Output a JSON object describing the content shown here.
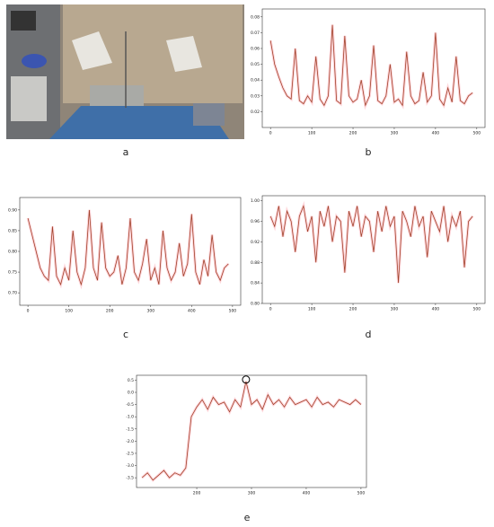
{
  "photo_label": "a",
  "chart_data": [
    {
      "type": "line",
      "label": "b",
      "color": "#a0422a",
      "x": [
        0,
        10,
        20,
        30,
        40,
        50,
        60,
        70,
        80,
        90,
        100,
        110,
        120,
        130,
        140,
        150,
        160,
        170,
        180,
        190,
        200,
        210,
        220,
        230,
        240,
        250,
        260,
        270,
        280,
        290,
        300,
        310,
        320,
        330,
        340,
        350,
        360,
        370,
        380,
        390,
        400,
        410,
        420,
        430,
        440,
        450,
        460,
        470,
        480,
        490
      ],
      "values": [
        0.065,
        0.05,
        0.042,
        0.035,
        0.03,
        0.028,
        0.06,
        0.027,
        0.025,
        0.03,
        0.026,
        0.055,
        0.028,
        0.024,
        0.03,
        0.075,
        0.027,
        0.025,
        0.068,
        0.03,
        0.026,
        0.028,
        0.04,
        0.024,
        0.03,
        0.062,
        0.027,
        0.025,
        0.03,
        0.05,
        0.026,
        0.028,
        0.024,
        0.058,
        0.03,
        0.025,
        0.027,
        0.045,
        0.026,
        0.03,
        0.07,
        0.028,
        0.024,
        0.035,
        0.026,
        0.055,
        0.027,
        0.025,
        0.03,
        0.032
      ],
      "xlim": [
        -20,
        520
      ],
      "xticks": [
        0,
        100,
        200,
        300,
        400,
        500
      ],
      "ylim": [
        0.01,
        0.085
      ],
      "yticks": [
        0.02,
        0.03,
        0.04,
        0.05,
        0.06,
        0.07,
        0.08
      ]
    },
    {
      "type": "line",
      "label": "c",
      "color": "#a0422a",
      "x": [
        0,
        10,
        20,
        30,
        40,
        50,
        60,
        70,
        80,
        90,
        100,
        110,
        120,
        130,
        140,
        150,
        160,
        170,
        180,
        190,
        200,
        210,
        220,
        230,
        240,
        250,
        260,
        270,
        280,
        290,
        300,
        310,
        320,
        330,
        340,
        350,
        360,
        370,
        380,
        390,
        400,
        410,
        420,
        430,
        440,
        450,
        460,
        470,
        480,
        490
      ],
      "values": [
        0.88,
        0.84,
        0.8,
        0.76,
        0.74,
        0.73,
        0.86,
        0.74,
        0.72,
        0.76,
        0.73,
        0.85,
        0.75,
        0.72,
        0.76,
        0.9,
        0.76,
        0.73,
        0.87,
        0.76,
        0.74,
        0.75,
        0.79,
        0.72,
        0.76,
        0.88,
        0.75,
        0.73,
        0.77,
        0.83,
        0.73,
        0.76,
        0.72,
        0.85,
        0.76,
        0.73,
        0.75,
        0.82,
        0.74,
        0.77,
        0.89,
        0.75,
        0.72,
        0.78,
        0.74,
        0.84,
        0.75,
        0.73,
        0.76,
        0.77
      ],
      "xlim": [
        -20,
        520
      ],
      "xticks": [
        0,
        100,
        200,
        300,
        400,
        500
      ],
      "ylim": [
        0.67,
        0.93
      ],
      "yticks": [
        {
          "value": 0.7,
          "label": "0.70"
        },
        0.75,
        {
          "value": 0.8,
          "label": "0.80"
        },
        0.85,
        {
          "value": 0.9,
          "label": "0.90"
        }
      ]
    },
    {
      "type": "line",
      "label": "d",
      "color": "#a0422a",
      "x": [
        0,
        10,
        20,
        30,
        40,
        50,
        60,
        70,
        80,
        90,
        100,
        110,
        120,
        130,
        140,
        150,
        160,
        170,
        180,
        190,
        200,
        210,
        220,
        230,
        240,
        250,
        260,
        270,
        280,
        290,
        300,
        310,
        320,
        330,
        340,
        350,
        360,
        370,
        380,
        390,
        400,
        410,
        420,
        430,
        440,
        450,
        460,
        470,
        480,
        490
      ],
      "values": [
        0.97,
        0.95,
        0.99,
        0.93,
        0.98,
        0.96,
        0.9,
        0.97,
        0.99,
        0.94,
        0.97,
        0.88,
        0.98,
        0.95,
        0.99,
        0.92,
        0.97,
        0.96,
        0.86,
        0.98,
        0.95,
        0.99,
        0.93,
        0.97,
        0.96,
        0.9,
        0.98,
        0.94,
        0.99,
        0.95,
        0.97,
        0.84,
        0.98,
        0.96,
        0.93,
        0.99,
        0.95,
        0.97,
        0.89,
        0.98,
        0.96,
        0.94,
        0.99,
        0.92,
        0.97,
        0.95,
        0.98,
        0.87,
        0.96,
        0.97
      ],
      "xlim": [
        -20,
        520
      ],
      "xticks": [
        0,
        100,
        200,
        300,
        400,
        500
      ],
      "ylim": [
        0.8,
        1.01
      ],
      "yticks": [
        {
          "value": 0.8,
          "label": "0.80"
        },
        0.84,
        0.88,
        0.92,
        0.96,
        {
          "value": 1,
          "label": "1.00"
        }
      ]
    },
    {
      "type": "line",
      "label": "e",
      "color": "#a0422a",
      "x": [
        100,
        110,
        120,
        130,
        140,
        150,
        160,
        170,
        180,
        190,
        200,
        210,
        220,
        230,
        240,
        250,
        260,
        270,
        280,
        290,
        300,
        310,
        320,
        330,
        340,
        350,
        360,
        370,
        380,
        390,
        400,
        410,
        420,
        430,
        440,
        450,
        460,
        470,
        480,
        490,
        500
      ],
      "values": [
        -3.5,
        -3.3,
        -3.6,
        -3.4,
        -3.2,
        -3.5,
        -3.3,
        -3.4,
        -3.1,
        -1.0,
        -0.6,
        -0.3,
        -0.7,
        -0.2,
        -0.5,
        -0.4,
        -0.8,
        -0.3,
        -0.6,
        0.45,
        -0.5,
        -0.3,
        -0.7,
        -0.1,
        -0.5,
        -0.3,
        -0.6,
        -0.2,
        -0.5,
        -0.4,
        -0.3,
        -0.6,
        -0.2,
        -0.5,
        -0.4,
        -0.6,
        -0.3,
        -0.4,
        -0.5,
        -0.3,
        -0.5
      ],
      "xlim": [
        90,
        510
      ],
      "xticks": [
        200,
        300,
        400,
        500
      ],
      "ylim": [
        -3.9,
        0.7
      ],
      "yticks": [
        0.5,
        {
          "value": 0,
          "label": "0.0"
        },
        -0.5,
        {
          "value": -1,
          "label": "-1.0"
        },
        -1.5,
        {
          "value": -2,
          "label": "-2.0"
        },
        -2.5,
        {
          "value": -3,
          "label": "-3.0"
        },
        -3.5
      ]
    }
  ]
}
